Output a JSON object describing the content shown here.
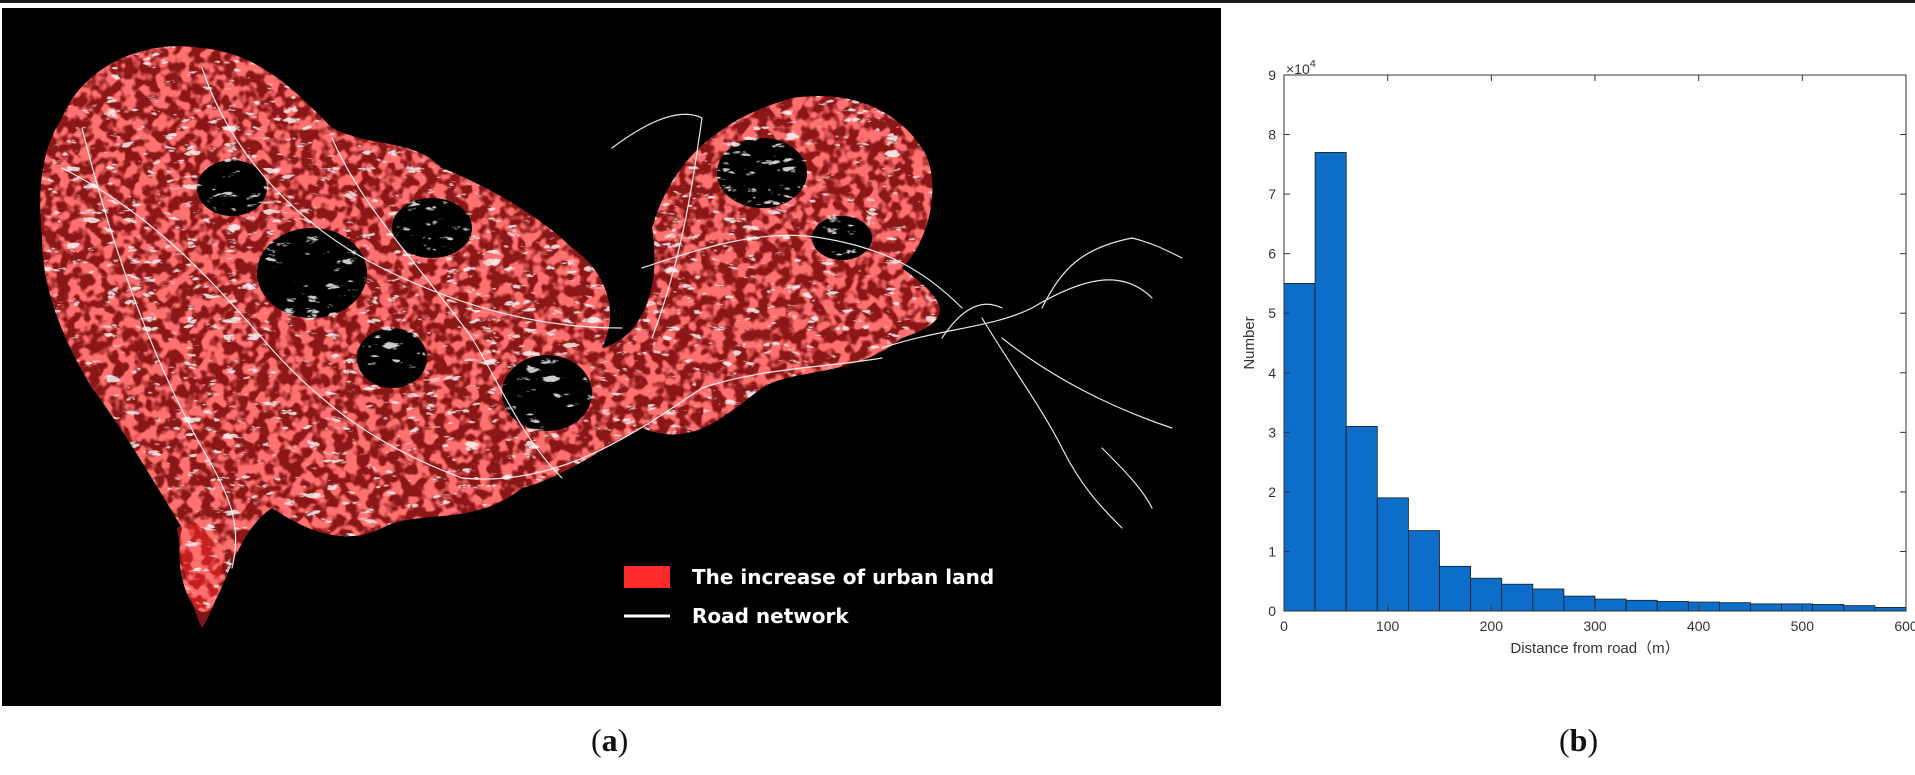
{
  "panel_a": {
    "caption_open": "(",
    "caption_letter": "a",
    "caption_close": ")",
    "legend": [
      {
        "label": "The increase of urban land",
        "color": "#ff2a2a",
        "symbol": "patch"
      },
      {
        "label": "Road  network",
        "color": "#ffffff",
        "symbol": "line"
      }
    ],
    "map_colors": {
      "background": "#000000",
      "urban": "#ff2a2a",
      "road": "#ffffff"
    }
  },
  "panel_b": {
    "caption_open": "(",
    "caption_letter": "b",
    "caption_close": ")"
  },
  "chart_data": {
    "type": "bar",
    "xlabel": "Distance from road（m）",
    "ylabel": "Number",
    "y_multiplier_label": "×10",
    "y_multiplier_exp": "4",
    "xlim": [
      0,
      600
    ],
    "ylim": [
      0,
      9
    ],
    "x_ticks": [
      0,
      100,
      200,
      300,
      400,
      500,
      600
    ],
    "y_ticks": [
      0,
      1,
      2,
      3,
      4,
      5,
      6,
      7,
      8,
      9
    ],
    "bar_width": 30,
    "bar_color": "#0c6ec8",
    "grid": false,
    "bins_start": [
      0,
      30,
      60,
      90,
      120,
      150,
      180,
      210,
      240,
      270,
      300,
      330,
      360,
      390,
      420,
      450,
      480,
      510,
      540,
      570
    ],
    "values": [
      5.5,
      7.7,
      3.1,
      1.9,
      1.35,
      0.75,
      0.55,
      0.45,
      0.37,
      0.25,
      0.2,
      0.18,
      0.16,
      0.15,
      0.14,
      0.12,
      0.12,
      0.11,
      0.09,
      0.06
    ]
  }
}
